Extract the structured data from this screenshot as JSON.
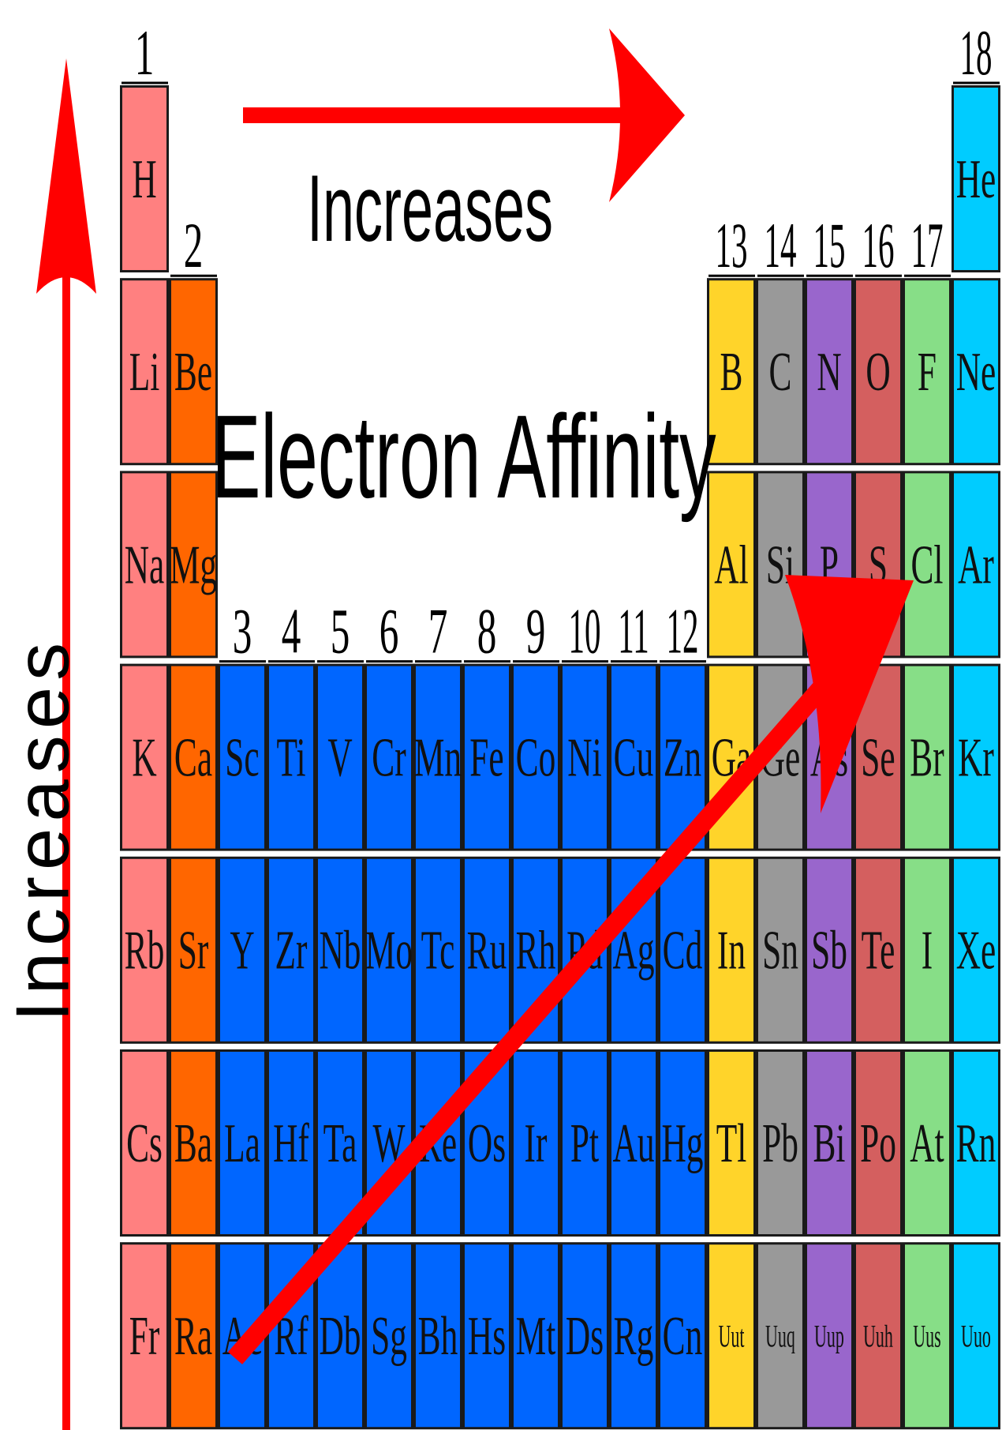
{
  "title": "Electron Affinity",
  "horizontal_label": "Increases",
  "vertical_label": "Increases",
  "group_numbers": [
    "1",
    "2",
    "3",
    "4",
    "5",
    "6",
    "7",
    "8",
    "9",
    "10",
    "11",
    "12",
    "13",
    "14",
    "15",
    "16",
    "17",
    "18"
  ],
  "colors": {
    "alkali": "#ff8080",
    "alkaline_earth": "#ff6600",
    "transition": "#0066ff",
    "boron": "#ffd42a",
    "carbon": "#999999",
    "pnictogen": "#9966cc",
    "chalcogen": "#d45f5f",
    "halogen": "#87de87",
    "noble": "#00ccff",
    "arrow": "#ff0000"
  },
  "periods": [
    [
      [
        "H",
        "alkali"
      ],
      null,
      null,
      null,
      null,
      null,
      null,
      null,
      null,
      null,
      null,
      null,
      null,
      null,
      null,
      null,
      null,
      [
        "He",
        "noble"
      ]
    ],
    [
      [
        "Li",
        "alkali"
      ],
      [
        "Be",
        "alkaline_earth"
      ],
      null,
      null,
      null,
      null,
      null,
      null,
      null,
      null,
      null,
      null,
      [
        "B",
        "boron"
      ],
      [
        "C",
        "carbon"
      ],
      [
        "N",
        "pnictogen"
      ],
      [
        "O",
        "chalcogen"
      ],
      [
        "F",
        "halogen"
      ],
      [
        "Ne",
        "noble"
      ]
    ],
    [
      [
        "Na",
        "alkali"
      ],
      [
        "Mg",
        "alkaline_earth"
      ],
      null,
      null,
      null,
      null,
      null,
      null,
      null,
      null,
      null,
      null,
      [
        "Al",
        "boron"
      ],
      [
        "Si",
        "carbon"
      ],
      [
        "P",
        "pnictogen"
      ],
      [
        "S",
        "chalcogen"
      ],
      [
        "Cl",
        "halogen"
      ],
      [
        "Ar",
        "noble"
      ]
    ],
    [
      [
        "K",
        "alkali"
      ],
      [
        "Ca",
        "alkaline_earth"
      ],
      [
        "Sc",
        "transition"
      ],
      [
        "Ti",
        "transition"
      ],
      [
        "V",
        "transition"
      ],
      [
        "Cr",
        "transition"
      ],
      [
        "Mn",
        "transition"
      ],
      [
        "Fe",
        "transition"
      ],
      [
        "Co",
        "transition"
      ],
      [
        "Ni",
        "transition"
      ],
      [
        "Cu",
        "transition"
      ],
      [
        "Zn",
        "transition"
      ],
      [
        "Ga",
        "boron"
      ],
      [
        "Ge",
        "carbon"
      ],
      [
        "As",
        "pnictogen"
      ],
      [
        "Se",
        "chalcogen"
      ],
      [
        "Br",
        "halogen"
      ],
      [
        "Kr",
        "noble"
      ]
    ],
    [
      [
        "Rb",
        "alkali"
      ],
      [
        "Sr",
        "alkaline_earth"
      ],
      [
        "Y",
        "transition"
      ],
      [
        "Zr",
        "transition"
      ],
      [
        "Nb",
        "transition"
      ],
      [
        "Mo",
        "transition"
      ],
      [
        "Tc",
        "transition"
      ],
      [
        "Ru",
        "transition"
      ],
      [
        "Rh",
        "transition"
      ],
      [
        "Pd",
        "transition"
      ],
      [
        "Ag",
        "transition"
      ],
      [
        "Cd",
        "transition"
      ],
      [
        "In",
        "boron"
      ],
      [
        "Sn",
        "carbon"
      ],
      [
        "Sb",
        "pnictogen"
      ],
      [
        "Te",
        "chalcogen"
      ],
      [
        "I",
        "halogen"
      ],
      [
        "Xe",
        "noble"
      ]
    ],
    [
      [
        "Cs",
        "alkali"
      ],
      [
        "Ba",
        "alkaline_earth"
      ],
      [
        "La",
        "transition"
      ],
      [
        "Hf",
        "transition"
      ],
      [
        "Ta",
        "transition"
      ],
      [
        "W",
        "transition"
      ],
      [
        "Re",
        "transition"
      ],
      [
        "Os",
        "transition"
      ],
      [
        "Ir",
        "transition"
      ],
      [
        "Pt",
        "transition"
      ],
      [
        "Au",
        "transition"
      ],
      [
        "Hg",
        "transition"
      ],
      [
        "Tl",
        "boron"
      ],
      [
        "Pb",
        "carbon"
      ],
      [
        "Bi",
        "pnictogen"
      ],
      [
        "Po",
        "chalcogen"
      ],
      [
        "At",
        "halogen"
      ],
      [
        "Rn",
        "noble"
      ]
    ],
    [
      [
        "Fr",
        "alkali"
      ],
      [
        "Ra",
        "alkaline_earth"
      ],
      [
        "Ac",
        "transition"
      ],
      [
        "Rf",
        "transition"
      ],
      [
        "Db",
        "transition"
      ],
      [
        "Sg",
        "transition"
      ],
      [
        "Bh",
        "transition"
      ],
      [
        "Hs",
        "transition"
      ],
      [
        "Mt",
        "transition"
      ],
      [
        "Ds",
        "transition"
      ],
      [
        "Rg",
        "transition"
      ],
      [
        "Cn",
        "transition"
      ],
      [
        "Uut",
        "boron"
      ],
      [
        "Uuq",
        "carbon"
      ],
      [
        "Uup",
        "pnictogen"
      ],
      [
        "Uuh",
        "chalcogen"
      ],
      [
        "Uus",
        "halogen"
      ],
      [
        "Uuo",
        "noble"
      ]
    ]
  ]
}
